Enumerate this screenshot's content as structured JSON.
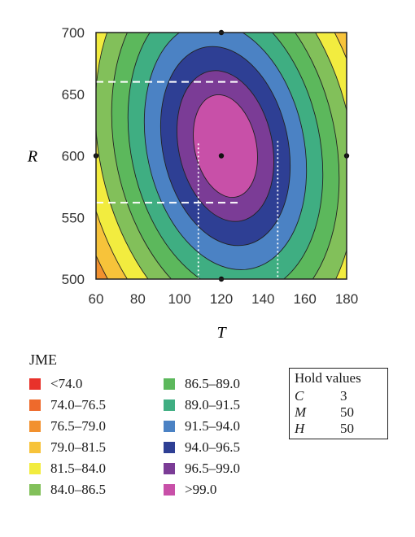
{
  "chart_data": {
    "type": "contour",
    "xlabel": "T",
    "ylabel": "R",
    "xlim": [
      60,
      180
    ],
    "ylim": [
      500,
      700
    ],
    "xticks": [
      60,
      80,
      100,
      120,
      140,
      160,
      180
    ],
    "yticks": [
      500,
      550,
      600,
      650,
      700
    ],
    "optimum": {
      "x": 120,
      "y": 600
    },
    "design_points": [
      {
        "x": 120,
        "y": 600
      },
      {
        "x": 120,
        "y": 700
      },
      {
        "x": 120,
        "y": 500
      },
      {
        "x": 60,
        "y": 600
      },
      {
        "x": 180,
        "y": 600
      }
    ],
    "reference_lines": {
      "R_at": [
        660,
        562
      ],
      "T_at": [
        109,
        147
      ]
    },
    "contour_levels": [
      74.0,
      76.5,
      79.0,
      81.5,
      84.0,
      86.5,
      89.0,
      91.5,
      94.0,
      96.5,
      99.0
    ],
    "legend": {
      "title": "JME",
      "entries": [
        {
          "label": "<74.0",
          "color": "#e8322b"
        },
        {
          "label": "74.0–76.5",
          "color": "#ee6a2c"
        },
        {
          "label": "76.5–79.0",
          "color": "#f2912e"
        },
        {
          "label": "79.0–81.5",
          "color": "#f7c33a"
        },
        {
          "label": "81.5–84.0",
          "color": "#f2ec3f"
        },
        {
          "label": "84.0–86.5",
          "color": "#82c05a"
        },
        {
          "label": "86.5–89.0",
          "color": "#5cb85c"
        },
        {
          "label": "89.0–91.5",
          "color": "#3fae82"
        },
        {
          "label": "91.5–94.0",
          "color": "#4b82c4"
        },
        {
          "label": "94.0–96.5",
          "color": "#2e3f94"
        },
        {
          "label": "96.5–99.0",
          "color": "#7b3c96"
        },
        {
          "label": ">99.0",
          "color": "#c850a8"
        }
      ]
    },
    "hold_values": {
      "title": "Hold values",
      "rows": [
        {
          "name": "C",
          "value": "3"
        },
        {
          "name": "M",
          "value": "50"
        },
        {
          "name": "H",
          "value": "50"
        }
      ]
    }
  }
}
